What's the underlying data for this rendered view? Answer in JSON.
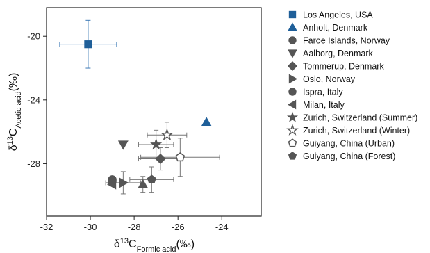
{
  "chart_data": {
    "type": "scatter",
    "xlabel": {
      "prefix": "δ",
      "sup": "13",
      "main": "C",
      "sub": "Formic acid",
      "unit": "(‰)"
    },
    "ylabel": {
      "prefix": "δ",
      "sup": "13",
      "main": "C",
      "sub": "Acetic acid",
      "unit": "(‰)"
    },
    "xlim": [
      -32,
      -22.2
    ],
    "ylim": [
      -31.3,
      -18.2
    ],
    "xticks": [
      -32,
      -30,
      -28,
      -26,
      -24
    ],
    "yticks": [
      -28,
      -24,
      -20
    ],
    "grid": false,
    "legend_position": "right",
    "colors": {
      "blue": "#1f5f99",
      "gray": "#555555",
      "errorbar_blue": "#3a78b5",
      "errorbar_gray": "#777777"
    },
    "series": [
      {
        "name": "Los Angeles, USA",
        "marker": "square",
        "color": "blue",
        "filled": true,
        "points": [
          {
            "x": -30.1,
            "y": -20.5,
            "xerr": 1.3,
            "yerr": 1.5
          }
        ]
      },
      {
        "name": "Anholt, Denmark",
        "marker": "triangle-up",
        "color": "blue",
        "filled": true,
        "points": [
          {
            "x": -24.7,
            "y": -25.4
          }
        ]
      },
      {
        "name": "Faroe Islands, Norway",
        "marker": "circle",
        "color": "gray",
        "filled": true,
        "points": [
          {
            "x": -29.0,
            "y": -29.0
          }
        ]
      },
      {
        "name": "Aalborg, Denmark",
        "marker": "triangle-down",
        "color": "gray",
        "filled": true,
        "points": [
          {
            "x": -28.5,
            "y": -26.8
          }
        ]
      },
      {
        "name": "Tommerup, Denmark",
        "marker": "diamond",
        "color": "gray",
        "filled": true,
        "points": [
          {
            "x": -26.8,
            "y": -27.7,
            "xerr": 1.0,
            "yerr": 0.7
          }
        ]
      },
      {
        "name": "Oslo, Norway",
        "marker": "triangle-right",
        "color": "gray",
        "filled": true,
        "points": [
          {
            "x": -28.5,
            "y": -29.2,
            "xerr": 0.8,
            "yerr": 0.7
          }
        ]
      },
      {
        "name": "Ispra, Italy",
        "marker": "circle",
        "color": "gray",
        "filled": true,
        "points": [
          {
            "x": -29.0,
            "y": -29.1
          }
        ]
      },
      {
        "name": "Milan, Italy",
        "marker": "triangle-left",
        "color": "gray",
        "filled": true,
        "points": [
          {
            "x": -29.0,
            "y": -29.3
          }
        ]
      },
      {
        "name": "Zurich, Switzerland (Summer)",
        "marker": "star",
        "color": "gray",
        "filled": true,
        "points": [
          {
            "x": -27.0,
            "y": -26.8,
            "xerr": 0.8,
            "yerr": 0.9
          }
        ]
      },
      {
        "name": "Zurich, Switzerland (Winter)",
        "marker": "star",
        "color": "gray",
        "filled": false,
        "points": [
          {
            "x": -26.5,
            "y": -26.2,
            "xerr": 0.9,
            "yerr": 0.8
          }
        ]
      },
      {
        "name": "Guiyang, China (Urban)",
        "marker": "pentagon",
        "color": "gray",
        "filled": false,
        "points": [
          {
            "x": -25.9,
            "y": -27.6,
            "xerr": 1.8,
            "yerr": 1.2
          }
        ]
      },
      {
        "name": "Guiyang, China (Forest)",
        "marker": "pentagon",
        "color": "gray",
        "filled": true,
        "points": [
          {
            "x": -27.2,
            "y": -29.0,
            "xerr": 1.0,
            "yerr": 0.8
          }
        ]
      },
      {
        "name": "",
        "marker": "triangle-up",
        "color": "gray",
        "filled": true,
        "points": [
          {
            "x": -27.6,
            "y": -29.3,
            "yerr": 0.5
          }
        ]
      }
    ]
  }
}
